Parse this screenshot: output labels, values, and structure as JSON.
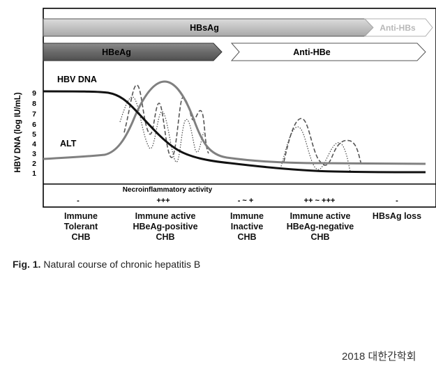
{
  "figure": {
    "bars": {
      "hbsag": "HBsAg",
      "anti_hbs": "Anti-HBs",
      "hbeag": "HBeAg",
      "anti_hbe": "Anti-HBe"
    },
    "y_axis_label": "HBV DNA (log IU/mL)",
    "y_ticks": [
      "1",
      "2",
      "3",
      "4",
      "5",
      "6",
      "7",
      "8",
      "9"
    ],
    "curve_labels": {
      "hbv_dna": "HBV DNA",
      "alt": "ALT"
    },
    "activity_title": "Necroinflammatory activity",
    "activity_levels": [
      "-",
      "+++",
      "- ~ +",
      "++ ~ +++",
      "-"
    ],
    "phases": [
      [
        "Immune",
        "Tolerant",
        "CHB"
      ],
      [
        "Immune active",
        "HBeAg-positive",
        "CHB"
      ],
      [
        "Immune",
        "Inactive",
        "CHB"
      ],
      [
        "Immune active",
        "HBeAg-negative",
        "CHB"
      ],
      [
        "HBsAg loss"
      ]
    ]
  },
  "caption": {
    "label": "Fig. 1.",
    "text": "Natural course of chronic hepatitis B"
  },
  "credit": "2018 대한간학회"
}
